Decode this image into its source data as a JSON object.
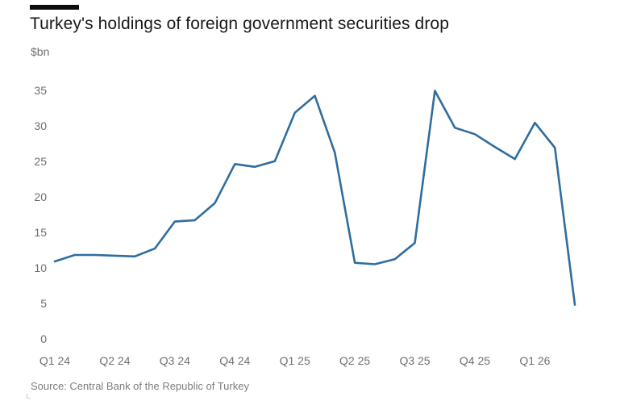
{
  "header": {
    "title": "Turkey's holdings of foreign government securities drop",
    "unit_label": "$bn"
  },
  "footer": {
    "source": "Source: Central Bank of the Republic of Turkey"
  },
  "colors": {
    "line": "#2e6d9f",
    "accent_bar": "#0d0d0d",
    "axis_text": "#6f6f6f"
  },
  "chart_data": {
    "type": "line",
    "title": "Turkey's holdings of foreign government securities drop",
    "ylabel": "$bn",
    "xlabel": "",
    "grid": false,
    "legend": "none",
    "ylim": [
      0,
      35
    ],
    "y_ticks": [
      0,
      5,
      10,
      15,
      20,
      25,
      30,
      35
    ],
    "x_tick_labels": [
      "Q1 24",
      "Q2 24",
      "Q3 24",
      "Q4 24",
      "Q1 25",
      "Q2 25",
      "Q3 25",
      "Q4 25",
      "Q1 26"
    ],
    "x": [
      "Jan 24",
      "Feb 24",
      "Mar 24",
      "Apr 24",
      "May 24",
      "Jun 24",
      "Jul 24",
      "Aug 24",
      "Sep 24",
      "Oct 24",
      "Nov 24",
      "Dec 24",
      "Jan 25",
      "Feb 25",
      "Mar 25",
      "Apr 25",
      "May 25",
      "Jun 25",
      "Jul 25",
      "Aug 25",
      "Sep 25",
      "Oct 25",
      "Nov 25",
      "Dec 25",
      "Jan 26",
      "Feb 26",
      "Mar 26"
    ],
    "values": [
      10.9,
      11.8,
      11.8,
      11.7,
      11.6,
      12.7,
      16.5,
      16.7,
      19.1,
      24.6,
      24.2,
      25.0,
      31.8,
      34.2,
      26.2,
      10.7,
      10.5,
      11.2,
      13.5,
      34.9,
      29.7,
      28.8,
      27.0,
      25.3,
      30.4,
      26.9,
      4.8
    ],
    "source": "Source: Central Bank of the Republic of Turkey"
  }
}
